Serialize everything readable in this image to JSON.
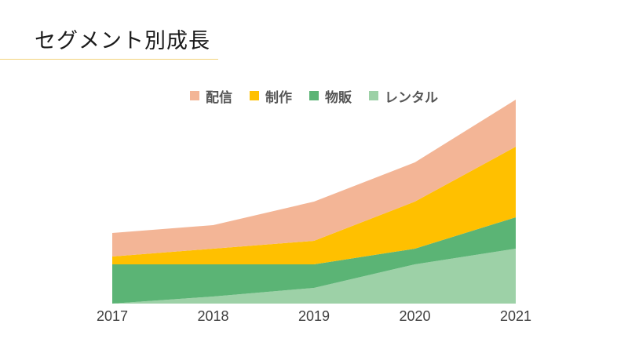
{
  "slide": {
    "title": "セグメント別成長"
  },
  "chart_data": {
    "type": "area",
    "stacked": true,
    "categories": [
      "2017",
      "2018",
      "2019",
      "2020",
      "2021"
    ],
    "series": [
      {
        "name": "レンタル",
        "color": "#9dd1a7",
        "values": [
          0,
          9,
          20,
          50,
          70
        ]
      },
      {
        "name": "物販",
        "color": "#5bb475",
        "values": [
          50,
          41,
          30,
          20,
          40
        ]
      },
      {
        "name": "制作",
        "color": "#ffc000",
        "values": [
          10,
          20,
          30,
          60,
          90
        ]
      },
      {
        "name": "配信",
        "color": "#f3b596",
        "values": [
          30,
          30,
          50,
          50,
          60
        ]
      }
    ],
    "legend_order": [
      "配信",
      "制作",
      "物販",
      "レンタル"
    ],
    "legend_position": "top",
    "ylim": [
      0,
      260
    ],
    "grid": false,
    "y_axis_visible": false
  }
}
